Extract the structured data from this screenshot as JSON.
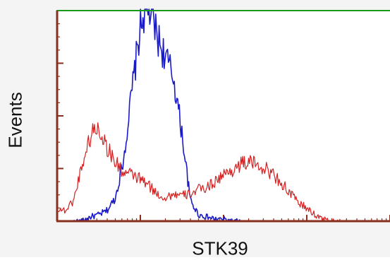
{
  "chart_data": {
    "type": "line",
    "title": "",
    "xlabel": "STK39",
    "ylabel": "Events",
    "xscale": "log",
    "xlim": [
      0,
      4
    ],
    "ylim": [
      0,
      100
    ],
    "grid": false,
    "legend": "none",
    "colors": {
      "frame_top": "#1a9a1a",
      "frame_axis": "#8a2f1e",
      "series_blue": "#1a1ac8",
      "series_red": "#d42020"
    },
    "series": [
      {
        "color": "#1a1ac8",
        "x": [
          0.2,
          0.3,
          0.4,
          0.5,
          0.6,
          0.7,
          0.8,
          0.9,
          1.0,
          1.05,
          1.1,
          1.15,
          1.2,
          1.25,
          1.3,
          1.4,
          1.5,
          1.6,
          1.7,
          1.8,
          1.9,
          2.0,
          2.1,
          2.2
        ],
        "y": [
          0,
          0,
          2,
          3,
          5,
          11,
          30,
          62,
          92,
          100,
          101,
          96,
          88,
          83,
          78,
          68,
          42,
          10,
          3,
          2,
          1,
          1,
          0,
          0
        ]
      },
      {
        "color": "#d42020",
        "x": [
          0.0,
          0.1,
          0.2,
          0.3,
          0.4,
          0.45,
          0.5,
          0.55,
          0.6,
          0.7,
          0.8,
          0.9,
          1.0,
          1.1,
          1.2,
          1.3,
          1.4,
          1.5,
          1.6,
          1.7,
          1.8,
          1.9,
          2.0,
          2.1,
          2.2,
          2.3,
          2.4,
          2.5,
          2.6,
          2.7,
          2.8,
          2.9,
          3.0,
          3.1,
          3.2,
          3.3,
          3.4
        ],
        "y": [
          6,
          5,
          10,
          27,
          40,
          44,
          44,
          40,
          35,
          28,
          23,
          22,
          20,
          17,
          13,
          11,
          13,
          12,
          13,
          15,
          16,
          19,
          22,
          24,
          27,
          28,
          27,
          25,
          22,
          18,
          13,
          9,
          6,
          3,
          1,
          0,
          0
        ]
      }
    ],
    "xticks": {
      "major": [
        0,
        1,
        2,
        3,
        4
      ],
      "minor_per_decade": 8
    },
    "yticks": {
      "major": [
        0,
        25,
        50,
        75,
        100
      ],
      "minor_per_interval": 4
    }
  }
}
